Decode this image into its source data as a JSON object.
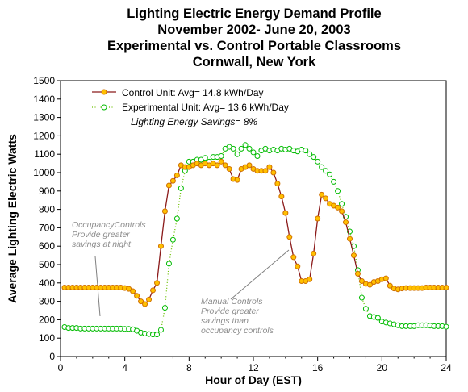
{
  "chart_data": {
    "type": "line",
    "title": [
      "Lighting Electric Energy Demand Profile",
      "November 2002- June 20, 2003",
      "Experimental vs. Control Portable Classrooms",
      "Cornwall, New York"
    ],
    "xlabel": "Hour of Day (EST)",
    "ylabel": "Average Lighting Electric Watts",
    "xlim": [
      0,
      24
    ],
    "ylim": [
      0,
      1500
    ],
    "xticks": [
      0,
      4,
      8,
      12,
      16,
      20,
      24
    ],
    "yticks": [
      0,
      100,
      200,
      300,
      400,
      500,
      600,
      700,
      800,
      900,
      1000,
      1100,
      1200,
      1300,
      1400,
      1500
    ],
    "legend_position": "top-left",
    "savings_label": "Lighting Energy Savings= 8%",
    "annotations": [
      {
        "lines": [
          "OccupancyControls",
          "Provide greater",
          "savings at night"
        ]
      },
      {
        "lines": [
          "Manual Controls",
          "Provide greater",
          "savings than",
          "occupancy controls"
        ]
      }
    ],
    "series": [
      {
        "name": "Control Unit: Avg= 14.8 kWh/Day",
        "line_color": "#8b1a1a",
        "marker_color": "#ffc000",
        "marker_edge": "#d07000",
        "x": [
          0.25,
          0.5,
          0.75,
          1,
          1.25,
          1.5,
          1.75,
          2,
          2.25,
          2.5,
          2.75,
          3,
          3.25,
          3.5,
          3.75,
          4,
          4.25,
          4.5,
          4.75,
          5,
          5.25,
          5.5,
          5.75,
          6,
          6.25,
          6.5,
          6.75,
          7,
          7.25,
          7.5,
          7.75,
          8,
          8.25,
          8.5,
          8.75,
          9,
          9.25,
          9.5,
          9.75,
          10,
          10.25,
          10.5,
          10.75,
          11,
          11.25,
          11.5,
          11.75,
          12,
          12.25,
          12.5,
          12.75,
          13,
          13.25,
          13.5,
          13.75,
          14,
          14.25,
          14.5,
          14.75,
          15,
          15.25,
          15.5,
          15.75,
          16,
          16.25,
          16.5,
          16.75,
          17,
          17.25,
          17.5,
          17.75,
          18,
          18.25,
          18.5,
          18.75,
          19,
          19.25,
          19.5,
          19.75,
          20,
          20.25,
          20.5,
          20.75,
          21,
          21.25,
          21.5,
          21.75,
          22,
          22.25,
          22.5,
          22.75,
          23,
          23.25,
          23.5,
          23.75,
          24
        ],
        "values": [
          375,
          375,
          375,
          375,
          375,
          375,
          375,
          375,
          375,
          375,
          375,
          375,
          375,
          375,
          375,
          372,
          368,
          355,
          330,
          300,
          285,
          310,
          360,
          400,
          600,
          790,
          930,
          955,
          985,
          1040,
          1030,
          1030,
          1040,
          1050,
          1040,
          1050,
          1040,
          1050,
          1040,
          1060,
          1040,
          1020,
          965,
          960,
          1020,
          1030,
          1040,
          1020,
          1010,
          1010,
          1010,
          1030,
          1000,
          940,
          870,
          780,
          650,
          540,
          490,
          410,
          410,
          420,
          560,
          750,
          880,
          860,
          830,
          820,
          810,
          790,
          730,
          640,
          550,
          450,
          410,
          395,
          390,
          405,
          410,
          420,
          425,
          385,
          370,
          365,
          370,
          372,
          372,
          372,
          372,
          372,
          375,
          375,
          375,
          375,
          375,
          375
        ]
      },
      {
        "name": "Experimental Unit: Avg= 13.6 kWh/Day",
        "line_color": "#6cbf00",
        "marker_color": "#ffffff",
        "marker_edge": "#00bb00",
        "x": [
          0.25,
          0.5,
          0.75,
          1,
          1.25,
          1.5,
          1.75,
          2,
          2.25,
          2.5,
          2.75,
          3,
          3.25,
          3.5,
          3.75,
          4,
          4.25,
          4.5,
          4.75,
          5,
          5.25,
          5.5,
          5.75,
          6,
          6.25,
          6.5,
          6.75,
          7,
          7.25,
          7.5,
          7.75,
          8,
          8.25,
          8.5,
          8.75,
          9,
          9.25,
          9.5,
          9.75,
          10,
          10.25,
          10.5,
          10.75,
          11,
          11.25,
          11.5,
          11.75,
          12,
          12.25,
          12.5,
          12.75,
          13,
          13.25,
          13.5,
          13.75,
          14,
          14.25,
          14.5,
          14.75,
          15,
          15.25,
          15.5,
          15.75,
          16,
          16.25,
          16.5,
          16.75,
          17,
          17.25,
          17.5,
          17.75,
          18,
          18.25,
          18.5,
          18.75,
          19,
          19.25,
          19.5,
          19.75,
          20,
          20.25,
          20.5,
          20.75,
          21,
          21.25,
          21.5,
          21.75,
          22,
          22.25,
          22.5,
          22.75,
          23,
          23.25,
          23.5,
          23.75,
          24
        ],
        "values": [
          160,
          155,
          155,
          155,
          152,
          152,
          152,
          152,
          152,
          152,
          152,
          152,
          152,
          152,
          152,
          150,
          150,
          148,
          140,
          130,
          125,
          122,
          120,
          120,
          145,
          265,
          505,
          635,
          750,
          915,
          1010,
          1060,
          1060,
          1070,
          1070,
          1080,
          1060,
          1085,
          1085,
          1090,
          1130,
          1140,
          1130,
          1100,
          1130,
          1150,
          1130,
          1110,
          1090,
          1120,
          1130,
          1120,
          1125,
          1120,
          1130,
          1125,
          1130,
          1120,
          1115,
          1125,
          1120,
          1100,
          1085,
          1060,
          1030,
          1010,
          990,
          950,
          900,
          830,
          760,
          680,
          600,
          470,
          320,
          260,
          220,
          215,
          210,
          190,
          185,
          180,
          175,
          170,
          165,
          165,
          165,
          165,
          170,
          170,
          170,
          168,
          165,
          165,
          165,
          162
        ]
      }
    ]
  }
}
